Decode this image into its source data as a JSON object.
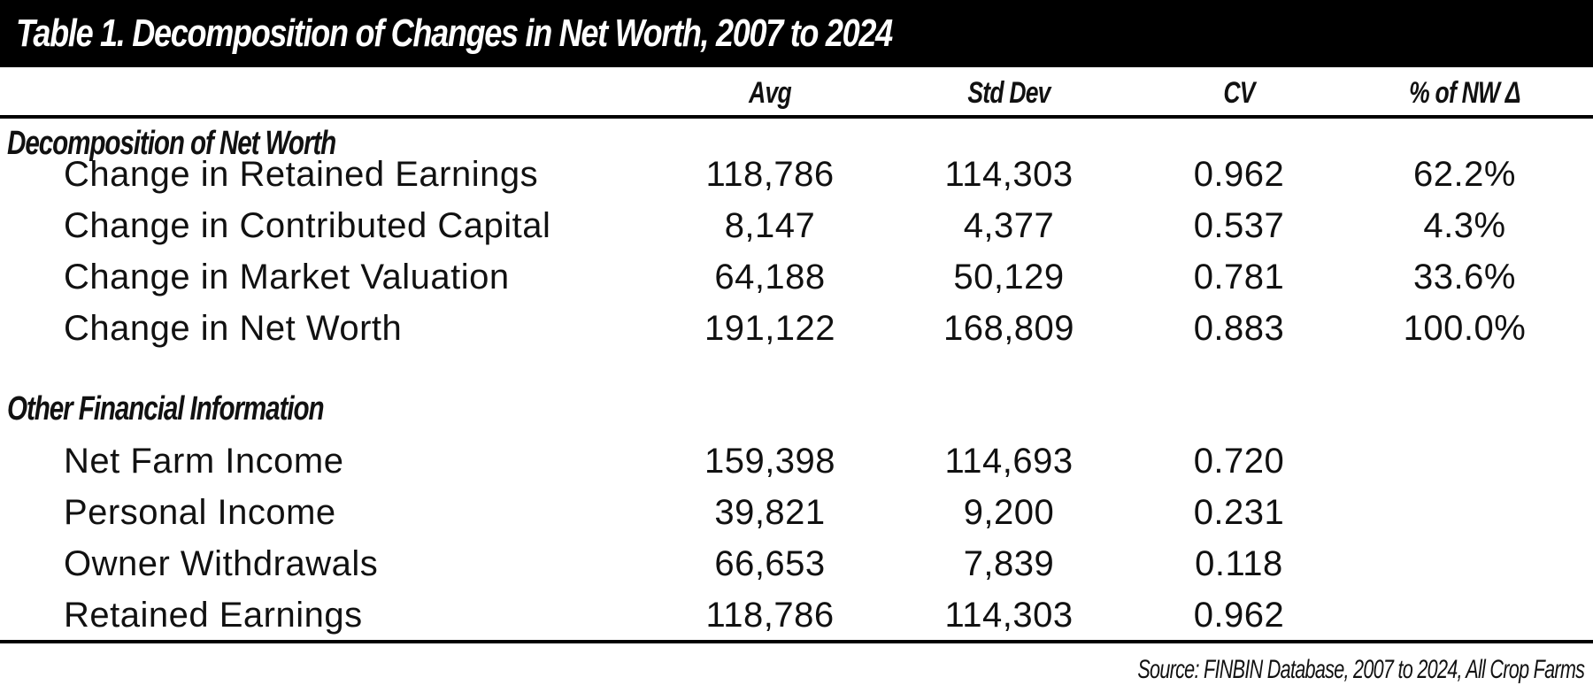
{
  "title": "Table 1.  Decomposition of Changes in Net Worth, 2007 to 2024",
  "columns": [
    "Avg",
    "Std Dev",
    "CV",
    "% of NW Δ"
  ],
  "sections": [
    {
      "heading": "Decomposition of Net Worth",
      "rows": [
        {
          "label": "Change in Retained Earnings",
          "avg": "118,786",
          "std": "114,303",
          "cv": "0.962",
          "pct": "62.2%"
        },
        {
          "label": "Change in Contributed Capital",
          "avg": "8,147",
          "std": "4,377",
          "cv": "0.537",
          "pct": "4.3%"
        },
        {
          "label": "Change in Market Valuation",
          "avg": "64,188",
          "std": "50,129",
          "cv": "0.781",
          "pct": "33.6%"
        },
        {
          "label": "Change in Net Worth",
          "avg": "191,122",
          "std": "168,809",
          "cv": "0.883",
          "pct": "100.0%"
        }
      ]
    },
    {
      "heading": "Other Financial Information",
      "rows": [
        {
          "label": "Net Farm Income",
          "avg": "159,398",
          "std": "114,693",
          "cv": "0.720",
          "pct": ""
        },
        {
          "label": "Personal Income",
          "avg": "39,821",
          "std": "9,200",
          "cv": "0.231",
          "pct": ""
        },
        {
          "label": "Owner Withdrawals",
          "avg": "66,653",
          "std": "7,839",
          "cv": "0.118",
          "pct": ""
        },
        {
          "label": "Retained Earnings",
          "avg": "118,786",
          "std": "114,303",
          "cv": "0.962",
          "pct": ""
        }
      ]
    }
  ],
  "source": "Source: FINBIN Database, 2007 to 2024, All Crop Farms",
  "colors": {
    "title_bar_bg": "#000000",
    "title_text": "#ffffff",
    "text": "#111111",
    "rule": "#000000"
  }
}
